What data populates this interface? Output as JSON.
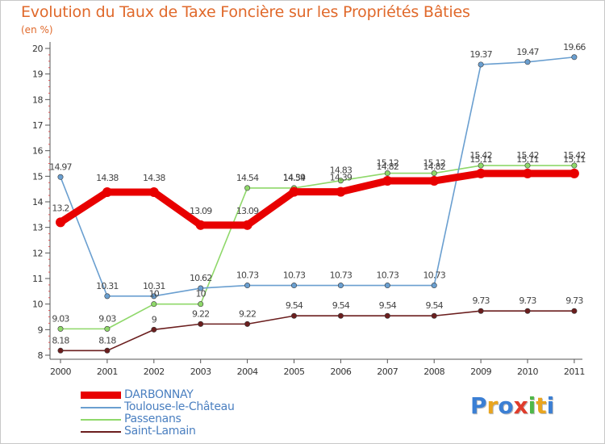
{
  "header": {
    "title": "Evolution du Taux de Taxe Foncière sur les Propriétés Bâties",
    "subtitle": "(en %)"
  },
  "logo": {
    "letters": [
      "P",
      "r",
      "o",
      "x",
      "i",
      "t",
      "i"
    ],
    "colors": [
      "#3b7fd4",
      "#e9a520",
      "#3b7fd4",
      "#e03c2c",
      "#4fb848",
      "#e9a520",
      "#3b7fd4"
    ]
  },
  "chart_data": {
    "type": "line",
    "title": "Evolution du Taux de Taxe Foncière sur les Propriétés Bâties",
    "ylabel": "(en %)",
    "xlabel": "",
    "ylim": [
      8,
      20
    ],
    "yticks": [
      "8",
      "9",
      "10",
      "11",
      "12",
      "13",
      "14",
      "15",
      "16",
      "17",
      "18",
      "19",
      "20"
    ],
    "x": [
      "2000",
      "2001",
      "2002",
      "2003",
      "2004",
      "2005",
      "2006",
      "2007",
      "2008",
      "2009",
      "2010",
      "2011"
    ],
    "series": [
      {
        "name": "Saint-Lamain",
        "color": "#6b1e1e",
        "values": [
          8.18,
          8.18,
          9,
          9.22,
          9.22,
          9.54,
          9.54,
          9.54,
          9.54,
          9.73,
          9.73,
          9.73
        ],
        "labels": [
          "8.18",
          "8.18",
          "9",
          "9.22",
          "9.22",
          "9.54",
          "9.54",
          "9.54",
          "9.54",
          "9.73",
          "9.73",
          "9.73"
        ]
      },
      {
        "name": "Passenans",
        "color": "#8fd86a",
        "values": [
          9.03,
          9.03,
          10,
          10,
          14.54,
          14.54,
          14.83,
          15.12,
          15.12,
          15.42,
          15.42,
          15.42
        ],
        "labels": [
          "9.03",
          "9.03",
          "10",
          "10",
          "14.54",
          "14.54",
          "14.83",
          "15.12",
          "15.12",
          "15.42",
          "15.42",
          "15.42"
        ]
      },
      {
        "name": "Toulouse-le-Château",
        "color": "#6a9fd0",
        "values": [
          14.97,
          10.31,
          10.31,
          10.62,
          10.73,
          10.73,
          10.73,
          10.73,
          10.73,
          19.37,
          19.47,
          19.66
        ],
        "labels": [
          "14.97",
          "10.31",
          "10.31",
          "10.62",
          "10.73",
          "10.73",
          "10.73",
          "10.73",
          "10.73",
          "19.37",
          "19.47",
          "19.66"
        ]
      },
      {
        "name": "DARBONNAY",
        "color": "#e80000",
        "values": [
          13.2,
          14.38,
          14.38,
          13.09,
          13.09,
          14.39,
          14.39,
          14.82,
          14.82,
          15.11,
          15.11,
          15.11
        ],
        "labels": [
          "13.2",
          "14.38",
          "14.38",
          "13.09",
          "13.09",
          "14.39",
          "14.39",
          "14.82",
          "14.82",
          "15.11",
          "15.11",
          "15.11"
        ]
      }
    ],
    "legend_order": [
      "DARBONNAY",
      "Toulouse-le-Château",
      "Passenans",
      "Saint-Lamain"
    ],
    "grid": false,
    "legend": "bottom-left"
  }
}
